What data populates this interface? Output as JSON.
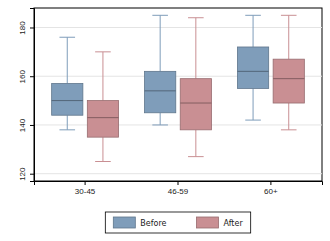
{
  "chart_data": {
    "type": "box",
    "categories": [
      "30-45",
      "46-59",
      "60+"
    ],
    "series": [
      {
        "name": "Before",
        "color": "#7f9dba",
        "min": [
          138,
          140,
          142
        ],
        "q1": [
          144,
          145,
          155
        ],
        "median": [
          150,
          154,
          162
        ],
        "q3": [
          157,
          162,
          172
        ],
        "max": [
          176,
          185,
          185
        ]
      },
      {
        "name": "After",
        "color": "#c98f93",
        "min": [
          125,
          127,
          138
        ],
        "q1": [
          135,
          138,
          149
        ],
        "median": [
          143,
          149,
          159
        ],
        "q3": [
          150,
          159,
          167
        ],
        "max": [
          170,
          184,
          185
        ]
      }
    ],
    "ylim": [
      117,
      188
    ],
    "yticks": [
      120,
      140,
      160,
      180
    ],
    "grid": true,
    "legend": "bottom"
  }
}
